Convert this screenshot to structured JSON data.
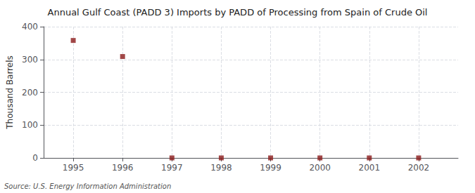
{
  "chart_data": {
    "type": "scatter",
    "title": "Annual Gulf Coast (PADD 3) Imports by PADD of Processing from Spain of Crude Oil",
    "ylabel": "Thousand Barrels",
    "annotation": "Source: U.S. Energy Information Administration",
    "x": [
      1995,
      1996,
      1997,
      1998,
      1999,
      2000,
      2001,
      2002
    ],
    "values": [
      358,
      309,
      0,
      0,
      0,
      0,
      0,
      0
    ],
    "color": "#8b1a1a",
    "marker": "square",
    "xlim": [
      1994.4,
      2002.8
    ],
    "xticks": [
      1995,
      1996,
      1997,
      1998,
      1999,
      2000,
      2001,
      2002
    ],
    "ylim": [
      0,
      400
    ],
    "yticks": [
      0,
      100,
      200,
      300,
      400
    ],
    "grid": true
  }
}
